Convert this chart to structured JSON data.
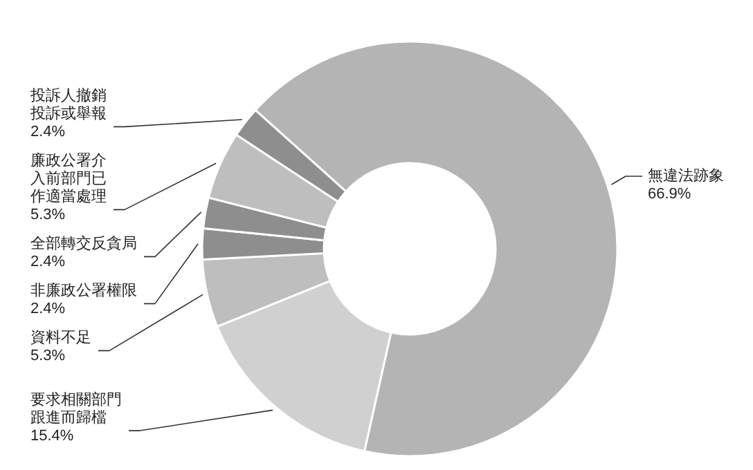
{
  "chart_data": {
    "type": "donut",
    "categories": [
      "無違法跡象",
      "要求相關部門跟進而歸檔",
      "資料不足",
      "非廉政公署權限",
      "全部轉交反貪局",
      "廉政公署介入前部門已作適當處理",
      "投訴人撤銷投訴或舉報"
    ],
    "values": [
      66.9,
      15.4,
      5.3,
      2.4,
      2.4,
      5.3,
      2.4
    ],
    "value_labels": [
      "66.9%",
      "15.4%",
      "5.3%",
      "2.4%",
      "2.4%",
      "5.3%",
      "2.4%"
    ],
    "colors": [
      "#b4b4b4",
      "#d0d0d0",
      "#bebebe",
      "#8e8e8e",
      "#8e8e8e",
      "#bebebe",
      "#8e8e8e"
    ]
  }
}
